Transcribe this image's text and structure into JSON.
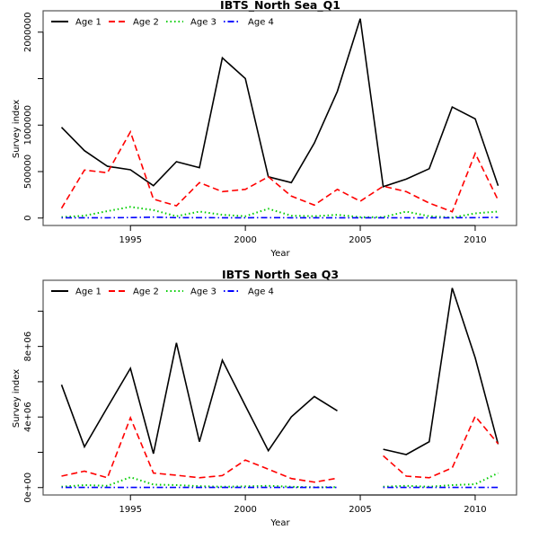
{
  "chart_data": [
    {
      "type": "line",
      "title": "IBTS_North Sea_Q1",
      "xlabel": "Year",
      "ylabel": "Survey index",
      "xlim": [
        1991.2,
        2011.8
      ],
      "ylim": [
        -80000,
        2230000
      ],
      "x_ticks": [
        1995,
        2000,
        2005,
        2010
      ],
      "x_tick_labels": [
        "1995",
        "2000",
        "2005",
        "2010"
      ],
      "y_ticks": [
        0,
        500000,
        1000000,
        1500000,
        2000000
      ],
      "y_tick_labels": [
        "0",
        "500000",
        "1000000",
        "",
        "2000000"
      ],
      "legend_position": "top-left",
      "x": [
        1992,
        1993,
        1994,
        1995,
        1996,
        1997,
        1998,
        1999,
        2000,
        2001,
        2002,
        2003,
        2004,
        2005,
        2006,
        2007,
        2008,
        2009,
        2010,
        2011
      ],
      "series": [
        {
          "name": "Age 1",
          "color": "#000000",
          "dash": "solid",
          "values": [
            976000,
            725000,
            557000,
            519000,
            348000,
            606000,
            541000,
            1724000,
            1501000,
            444000,
            381000,
            806000,
            1362000,
            2145000,
            338000,
            419000,
            531000,
            1195000,
            1067000,
            348000
          ]
        },
        {
          "name": "Age 2",
          "color": "#ff0000",
          "dash": "dashed",
          "values": [
            106000,
            516000,
            487000,
            928000,
            203000,
            132000,
            381000,
            284000,
            309000,
            444000,
            236000,
            139000,
            309000,
            181000,
            342000,
            284000,
            161000,
            68000,
            696000,
            193000
          ]
        },
        {
          "name": "Age 3",
          "color": "#00cd00",
          "dash": "dotted",
          "values": [
            10000,
            25000,
            75000,
            120000,
            85000,
            20000,
            70000,
            35000,
            20000,
            100000,
            25000,
            20000,
            35000,
            10000,
            10000,
            70000,
            20000,
            5000,
            50000,
            70000
          ]
        },
        {
          "name": "Age 4",
          "color": "#0000ff",
          "dash": "dotdash",
          "values": [
            3000,
            3000,
            3000,
            5000,
            10000,
            4000,
            4000,
            3000,
            3000,
            4000,
            3000,
            3000,
            3000,
            3000,
            3000,
            3000,
            3000,
            3000,
            4000,
            8000
          ]
        }
      ]
    },
    {
      "type": "line",
      "title": "IBTS North Sea Q3",
      "xlabel": "Year",
      "ylabel": "Survey index",
      "xlim": [
        1991.2,
        2011.8
      ],
      "ylim": [
        -420000,
        11750000
      ],
      "x_ticks": [
        1995,
        2000,
        2005,
        2010
      ],
      "x_tick_labels": [
        "1995",
        "2000",
        "2005",
        "2010"
      ],
      "y_ticks": [
        0,
        2000000,
        4000000,
        6000000,
        8000000,
        10000000
      ],
      "y_tick_labels": [
        "0e+00",
        "",
        "4e+06",
        "",
        "8e+06",
        ""
      ],
      "legend_position": "top-left",
      "x": [
        1992,
        1993,
        1994,
        1995,
        1996,
        1997,
        1998,
        1999,
        2000,
        2001,
        2002,
        2003,
        2004,
        2005,
        2006,
        2007,
        2008,
        2009,
        2010,
        2011
      ],
      "series": [
        {
          "name": "Age 1",
          "color": "#000000",
          "dash": "solid",
          "values": [
            5830000,
            2310000,
            4550000,
            6760000,
            1920000,
            8200000,
            2600000,
            7220000,
            4640000,
            2090000,
            4010000,
            5160000,
            4350000,
            null,
            2170000,
            1870000,
            2600000,
            11310000,
            7350000,
            2460000
          ]
        },
        {
          "name": "Age 2",
          "color": "#ff0000",
          "dash": "dashed",
          "values": [
            650000,
            930000,
            560000,
            3960000,
            820000,
            700000,
            560000,
            680000,
            1560000,
            1040000,
            510000,
            310000,
            530000,
            null,
            1800000,
            650000,
            560000,
            1120000,
            4040000,
            2480000
          ]
        },
        {
          "name": "Age 3",
          "color": "#00cd00",
          "dash": "dotted",
          "values": [
            50000,
            140000,
            100000,
            590000,
            170000,
            140000,
            80000,
            50000,
            70000,
            100000,
            50000,
            20000,
            30000,
            null,
            50000,
            100000,
            50000,
            140000,
            190000,
            820000
          ]
        },
        {
          "name": "Age 4",
          "color": "#0000ff",
          "dash": "dotdash",
          "values": [
            10000,
            10000,
            10000,
            10000,
            10000,
            10000,
            10000,
            10000,
            10000,
            10000,
            10000,
            10000,
            10000,
            null,
            10000,
            10000,
            10000,
            10000,
            10000,
            10000
          ]
        }
      ]
    }
  ]
}
